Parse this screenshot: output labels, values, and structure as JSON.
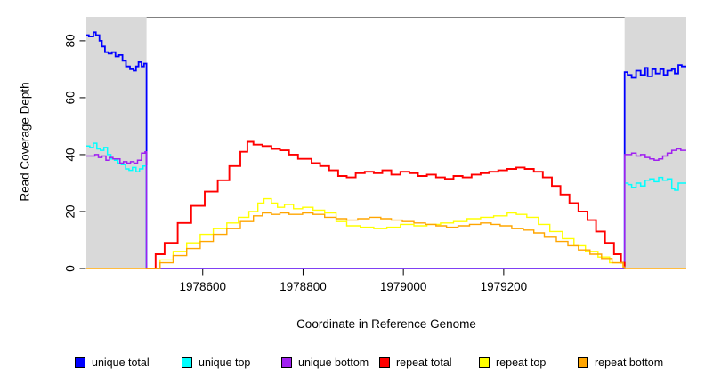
{
  "chart_data": {
    "type": "line",
    "line_style": "step",
    "title": "",
    "xlabel": "Coordinate in Reference Genome",
    "ylabel": "Read Coverage Depth",
    "xlim": [
      1978368,
      1979564
    ],
    "ylim": [
      0,
      88.4
    ],
    "x_ticks": [
      1978600,
      1978800,
      1979000,
      1979200
    ],
    "y_ticks": [
      0,
      20,
      40,
      60,
      80
    ],
    "grid": false,
    "legend_position": "bottom",
    "shade_color": "#d9d9d9",
    "border_color": "#808080",
    "shaded_regions": [
      {
        "x0": 1978368,
        "x1": 1978488
      },
      {
        "x0": 1979441,
        "x1": 1979564
      }
    ],
    "series": [
      {
        "name": "unique total",
        "color": "#0000FF",
        "width": 1.8,
        "points": [
          [
            1978368,
            82
          ],
          [
            1978373,
            81.5
          ],
          [
            1978382,
            83
          ],
          [
            1978387,
            82
          ],
          [
            1978394,
            80
          ],
          [
            1978399,
            78
          ],
          [
            1978405,
            76
          ],
          [
            1978412,
            75.5
          ],
          [
            1978419,
            76
          ],
          [
            1978426,
            74.5
          ],
          [
            1978433,
            75
          ],
          [
            1978440,
            73
          ],
          [
            1978447,
            71
          ],
          [
            1978455,
            70
          ],
          [
            1978462,
            69.5
          ],
          [
            1978467,
            71
          ],
          [
            1978472,
            72.5
          ],
          [
            1978478,
            71
          ],
          [
            1978483,
            72
          ],
          [
            1978488,
            70.5
          ],
          [
            1978488,
            0
          ],
          [
            1979441,
            0
          ],
          [
            1979441,
            69
          ],
          [
            1979447,
            68
          ],
          [
            1979455,
            67
          ],
          [
            1979464,
            69.5
          ],
          [
            1979473,
            68
          ],
          [
            1979482,
            70.5
          ],
          [
            1979487,
            67.5
          ],
          [
            1979496,
            70
          ],
          [
            1979503,
            68.5
          ],
          [
            1979512,
            70
          ],
          [
            1979519,
            68
          ],
          [
            1979526,
            69.5
          ],
          [
            1979535,
            70
          ],
          [
            1979541,
            68.5
          ],
          [
            1979548,
            71.5
          ],
          [
            1979555,
            71
          ],
          [
            1979564,
            71
          ]
        ]
      },
      {
        "name": "unique top",
        "color": "#00FFFF",
        "width": 1.5,
        "points": [
          [
            1978368,
            43
          ],
          [
            1978375,
            42.5
          ],
          [
            1978382,
            44
          ],
          [
            1978389,
            42
          ],
          [
            1978396,
            41.5
          ],
          [
            1978403,
            42.5
          ],
          [
            1978410,
            40
          ],
          [
            1978417,
            38.5
          ],
          [
            1978424,
            38
          ],
          [
            1978431,
            37
          ],
          [
            1978438,
            36.5
          ],
          [
            1978446,
            35
          ],
          [
            1978453,
            34.5
          ],
          [
            1978460,
            35.5
          ],
          [
            1978467,
            34
          ],
          [
            1978474,
            35
          ],
          [
            1978481,
            36
          ],
          [
            1978488,
            34
          ],
          [
            1978488,
            0
          ],
          [
            1979441,
            0
          ],
          [
            1979441,
            30
          ],
          [
            1979448,
            29.5
          ],
          [
            1979455,
            28.5
          ],
          [
            1979464,
            30
          ],
          [
            1979473,
            29
          ],
          [
            1979482,
            31
          ],
          [
            1979491,
            31.5
          ],
          [
            1979500,
            30.5
          ],
          [
            1979509,
            32
          ],
          [
            1979517,
            31
          ],
          [
            1979526,
            31.5
          ],
          [
            1979535,
            28
          ],
          [
            1979541,
            27.5
          ],
          [
            1979548,
            30
          ],
          [
            1979564,
            30
          ]
        ]
      },
      {
        "name": "unique bottom",
        "color": "#A020F0",
        "width": 1.5,
        "points": [
          [
            1978368,
            39.5
          ],
          [
            1978378,
            39.5
          ],
          [
            1978385,
            40
          ],
          [
            1978392,
            39
          ],
          [
            1978399,
            39.5
          ],
          [
            1978407,
            38
          ],
          [
            1978414,
            39
          ],
          [
            1978421,
            38.5
          ],
          [
            1978428,
            38.5
          ],
          [
            1978435,
            37
          ],
          [
            1978442,
            37.5
          ],
          [
            1978449,
            37
          ],
          [
            1978456,
            37.5
          ],
          [
            1978463,
            37
          ],
          [
            1978470,
            38
          ],
          [
            1978478,
            40.5
          ],
          [
            1978485,
            41
          ],
          [
            1978488,
            38.5
          ],
          [
            1978488,
            0
          ],
          [
            1979441,
            0
          ],
          [
            1979441,
            40
          ],
          [
            1979449,
            40
          ],
          [
            1979455,
            40.5
          ],
          [
            1979464,
            39.5
          ],
          [
            1979473,
            40
          ],
          [
            1979482,
            39
          ],
          [
            1979491,
            38.5
          ],
          [
            1979500,
            38
          ],
          [
            1979509,
            38.5
          ],
          [
            1979517,
            39.5
          ],
          [
            1979526,
            40.5
          ],
          [
            1979535,
            41.5
          ],
          [
            1979544,
            42
          ],
          [
            1979553,
            41.5
          ],
          [
            1979564,
            41.5
          ]
        ]
      },
      {
        "name": "repeat total",
        "color": "#FF0000",
        "width": 1.9,
        "points": [
          [
            1978488,
            0
          ],
          [
            1978506,
            5
          ],
          [
            1978524,
            9
          ],
          [
            1978550,
            16
          ],
          [
            1978577,
            22
          ],
          [
            1978604,
            27
          ],
          [
            1978630,
            31
          ],
          [
            1978653,
            36
          ],
          [
            1978675,
            41
          ],
          [
            1978689,
            44.5
          ],
          [
            1978701,
            43.5
          ],
          [
            1978719,
            43
          ],
          [
            1978737,
            42
          ],
          [
            1978754,
            41.5
          ],
          [
            1978772,
            40
          ],
          [
            1978790,
            38.5
          ],
          [
            1978817,
            37
          ],
          [
            1978834,
            36
          ],
          [
            1978852,
            34.5
          ],
          [
            1978870,
            32.5
          ],
          [
            1978887,
            32
          ],
          [
            1978905,
            33.5
          ],
          [
            1978923,
            34
          ],
          [
            1978941,
            33.5
          ],
          [
            1978958,
            34.5
          ],
          [
            1978976,
            33
          ],
          [
            1978994,
            34
          ],
          [
            1979012,
            33.5
          ],
          [
            1979029,
            32.5
          ],
          [
            1979047,
            33
          ],
          [
            1979065,
            32
          ],
          [
            1979083,
            31.5
          ],
          [
            1979100,
            32.5
          ],
          [
            1979118,
            32
          ],
          [
            1979136,
            33
          ],
          [
            1979154,
            33.5
          ],
          [
            1979171,
            34
          ],
          [
            1979189,
            34.5
          ],
          [
            1979207,
            35
          ],
          [
            1979225,
            35.5
          ],
          [
            1979242,
            35
          ],
          [
            1979260,
            34
          ],
          [
            1979278,
            32
          ],
          [
            1979296,
            29
          ],
          [
            1979313,
            26
          ],
          [
            1979331,
            23
          ],
          [
            1979349,
            20
          ],
          [
            1979367,
            17
          ],
          [
            1979384,
            13
          ],
          [
            1979402,
            9
          ],
          [
            1979420,
            5
          ],
          [
            1979434,
            2
          ],
          [
            1979441,
            0.5
          ]
        ]
      },
      {
        "name": "repeat top",
        "color": "#FFFF00",
        "width": 1.4,
        "points": [
          [
            1978488,
            0
          ],
          [
            1978515,
            3
          ],
          [
            1978541,
            6
          ],
          [
            1978568,
            9
          ],
          [
            1978595,
            12
          ],
          [
            1978621,
            14
          ],
          [
            1978648,
            16
          ],
          [
            1978671,
            18
          ],
          [
            1978692,
            20
          ],
          [
            1978710,
            23
          ],
          [
            1978722,
            24.5
          ],
          [
            1978737,
            23
          ],
          [
            1978749,
            21.5
          ],
          [
            1978763,
            22.5
          ],
          [
            1978781,
            21
          ],
          [
            1978799,
            21.5
          ],
          [
            1978820,
            20.5
          ],
          [
            1978843,
            19.5
          ],
          [
            1978866,
            16.5
          ],
          [
            1978887,
            15
          ],
          [
            1978914,
            14.5
          ],
          [
            1978941,
            14
          ],
          [
            1978967,
            14.5
          ],
          [
            1978994,
            15.5
          ],
          [
            1979021,
            15
          ],
          [
            1979047,
            15.5
          ],
          [
            1979074,
            16
          ],
          [
            1979100,
            16.5
          ],
          [
            1979127,
            17.5
          ],
          [
            1979154,
            18
          ],
          [
            1979180,
            18.5
          ],
          [
            1979207,
            19.5
          ],
          [
            1979225,
            19
          ],
          [
            1979246,
            18
          ],
          [
            1979269,
            15.5
          ],
          [
            1979292,
            13
          ],
          [
            1979317,
            10.5
          ],
          [
            1979340,
            8
          ],
          [
            1979363,
            6
          ],
          [
            1979388,
            4
          ],
          [
            1979411,
            2
          ],
          [
            1979438,
            0.5
          ],
          [
            1979441,
            0
          ]
        ]
      },
      {
        "name": "repeat bottom",
        "color": "#FFA500",
        "width": 1.4,
        "points": [
          [
            1978368,
            0
          ],
          [
            1978488,
            0
          ],
          [
            1978515,
            2
          ],
          [
            1978541,
            4.5
          ],
          [
            1978568,
            7
          ],
          [
            1978595,
            9.5
          ],
          [
            1978621,
            12
          ],
          [
            1978648,
            14
          ],
          [
            1978675,
            16.5
          ],
          [
            1978701,
            18.5
          ],
          [
            1978719,
            19.5
          ],
          [
            1978737,
            19
          ],
          [
            1978754,
            19.5
          ],
          [
            1978772,
            19
          ],
          [
            1978799,
            19.5
          ],
          [
            1978820,
            19
          ],
          [
            1978843,
            18
          ],
          [
            1978866,
            17.5
          ],
          [
            1978887,
            17
          ],
          [
            1978909,
            17.5
          ],
          [
            1978932,
            18
          ],
          [
            1978955,
            17.5
          ],
          [
            1978976,
            17
          ],
          [
            1978998,
            16.5
          ],
          [
            1979021,
            16
          ],
          [
            1979044,
            15.5
          ],
          [
            1979065,
            15
          ],
          [
            1979086,
            14.5
          ],
          [
            1979109,
            15
          ],
          [
            1979132,
            15.5
          ],
          [
            1979154,
            16
          ],
          [
            1979175,
            15.5
          ],
          [
            1979193,
            15
          ],
          [
            1979216,
            14
          ],
          [
            1979239,
            13.5
          ],
          [
            1979260,
            12.5
          ],
          [
            1979281,
            11
          ],
          [
            1979305,
            9.5
          ],
          [
            1979328,
            8
          ],
          [
            1979349,
            6.5
          ],
          [
            1979372,
            5
          ],
          [
            1979395,
            3.5
          ],
          [
            1979416,
            2
          ],
          [
            1979438,
            0.5
          ],
          [
            1979441,
            0
          ],
          [
            1979564,
            0
          ]
        ]
      }
    ]
  },
  "legend": {
    "items": [
      {
        "label": "unique total",
        "color": "#0000FF"
      },
      {
        "label": "unique top",
        "color": "#00FFFF"
      },
      {
        "label": "unique bottom",
        "color": "#A020F0"
      },
      {
        "label": "repeat total",
        "color": "#FF0000"
      },
      {
        "label": "repeat top",
        "color": "#FFFF00"
      },
      {
        "label": "repeat bottom",
        "color": "#FFA500"
      }
    ]
  }
}
